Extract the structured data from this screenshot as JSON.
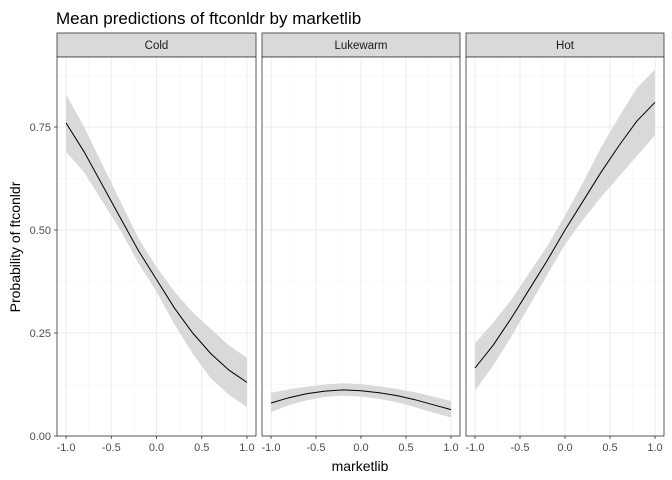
{
  "chart_data": {
    "type": "line",
    "title": "Mean predictions of ftconldr by marketlib",
    "xlabel": "marketlib",
    "ylabel": "Probability of ftconldr",
    "xlim": [
      -1.0,
      1.0
    ],
    "ylim": [
      0.0,
      0.92
    ],
    "x_ticks": [
      "-1.0",
      "-0.5",
      "0.0",
      "0.5",
      "1.0"
    ],
    "y_ticks": [
      "0.00",
      "0.25",
      "0.50",
      "0.75"
    ],
    "grid": true,
    "legend": "none",
    "colors": {
      "line": "#000000",
      "ribbon": "#d9d9d9",
      "strip": "#d9d9d9",
      "panel_border": "#333333",
      "grid_major": "#ebebeb",
      "grid_minor": "#f5f5f5"
    },
    "panels": [
      {
        "name": "Cold",
        "x": [
          -1.0,
          -0.8,
          -0.6,
          -0.4,
          -0.2,
          0.0,
          0.2,
          0.4,
          0.6,
          0.8,
          1.0
        ],
        "mean": [
          0.76,
          0.69,
          0.61,
          0.53,
          0.45,
          0.38,
          0.31,
          0.25,
          0.2,
          0.16,
          0.13
        ],
        "lower": [
          0.69,
          0.64,
          0.57,
          0.5,
          0.42,
          0.35,
          0.27,
          0.2,
          0.14,
          0.1,
          0.07
        ],
        "upper": [
          0.83,
          0.75,
          0.66,
          0.57,
          0.48,
          0.41,
          0.35,
          0.3,
          0.26,
          0.22,
          0.19
        ]
      },
      {
        "name": "Lukewarm",
        "x": [
          -1.0,
          -0.8,
          -0.6,
          -0.4,
          -0.2,
          0.0,
          0.2,
          0.4,
          0.6,
          0.8,
          1.0
        ],
        "mean": [
          0.08,
          0.093,
          0.103,
          0.109,
          0.112,
          0.11,
          0.105,
          0.098,
          0.088,
          0.076,
          0.064
        ],
        "lower": [
          0.058,
          0.075,
          0.087,
          0.095,
          0.098,
          0.096,
          0.09,
          0.082,
          0.07,
          0.057,
          0.045
        ],
        "upper": [
          0.105,
          0.113,
          0.12,
          0.125,
          0.128,
          0.126,
          0.121,
          0.114,
          0.106,
          0.096,
          0.085
        ]
      },
      {
        "name": "Hot",
        "x": [
          -1.0,
          -0.8,
          -0.6,
          -0.4,
          -0.2,
          0.0,
          0.2,
          0.4,
          0.6,
          0.8,
          1.0
        ],
        "mean": [
          0.165,
          0.22,
          0.285,
          0.355,
          0.425,
          0.5,
          0.57,
          0.64,
          0.705,
          0.765,
          0.81
        ],
        "lower": [
          0.11,
          0.17,
          0.24,
          0.315,
          0.39,
          0.465,
          0.525,
          0.58,
          0.63,
          0.68,
          0.73
        ],
        "upper": [
          0.225,
          0.275,
          0.33,
          0.395,
          0.46,
          0.535,
          0.615,
          0.7,
          0.775,
          0.845,
          0.89
        ]
      }
    ]
  }
}
